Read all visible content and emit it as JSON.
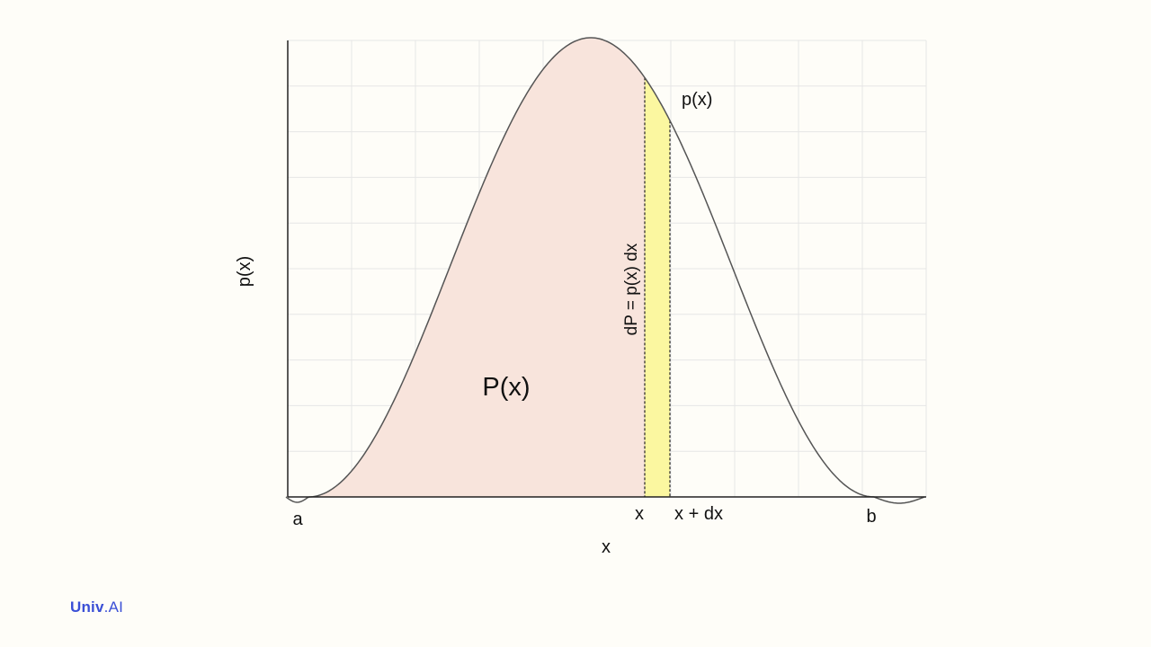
{
  "diagram": {
    "curve_label": "p(x)",
    "y_axis_label": "p(x)",
    "x_axis_label": "x",
    "area_label": "P(x)",
    "strip_label": "dP = p(x) dx",
    "tick_a": "a",
    "tick_x": "x",
    "tick_x_dx": "x + dx",
    "tick_b": "b",
    "colors": {
      "area_fill": "#f8e4dc",
      "strip_fill": "#fbf7a0",
      "curve": "#555555",
      "grid": "#e6e6e6",
      "axis": "#222222"
    }
  },
  "logo": {
    "bold_part": "Univ",
    "rest_part": ".AI"
  }
}
